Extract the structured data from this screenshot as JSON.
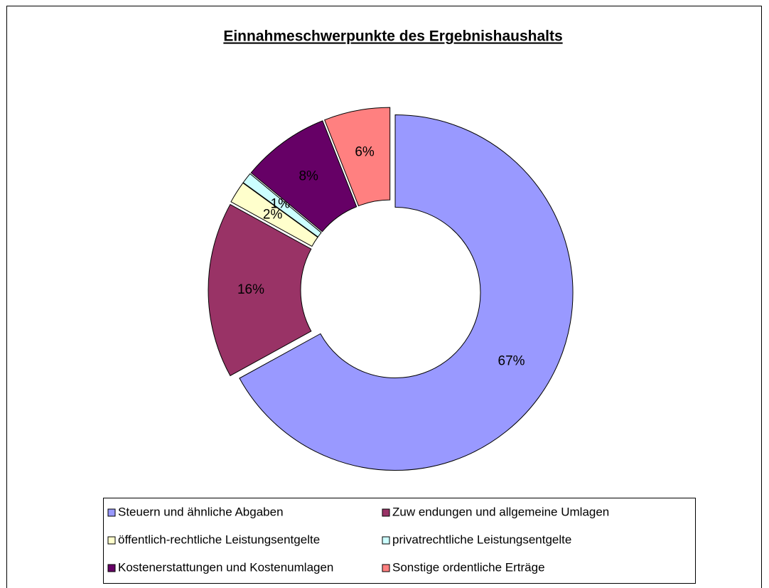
{
  "chart_data": {
    "type": "donut",
    "title": "Einnahmeschwerpunkte des Ergebnishaushalts",
    "categories": [
      "Steuern und ähnliche Abgaben",
      "Zuw endungen und allgemeine Umlagen",
      "öffentlich-rechtliche Leistungsentgelte",
      "privatrechtliche Leistungsentgelte",
      "Kostenerstattungen und Kostenumlagen",
      "Sonstige ordentliche Erträge"
    ],
    "values": [
      67,
      16,
      2,
      1,
      8,
      6
    ],
    "value_labels": [
      "67%",
      "16%",
      "2%",
      "1%",
      "8%",
      "6%"
    ],
    "colors": [
      "#9999ff",
      "#993366",
      "#ffffcc",
      "#ccffff",
      "#660066",
      "#ff8080"
    ],
    "legend": "bottom"
  }
}
